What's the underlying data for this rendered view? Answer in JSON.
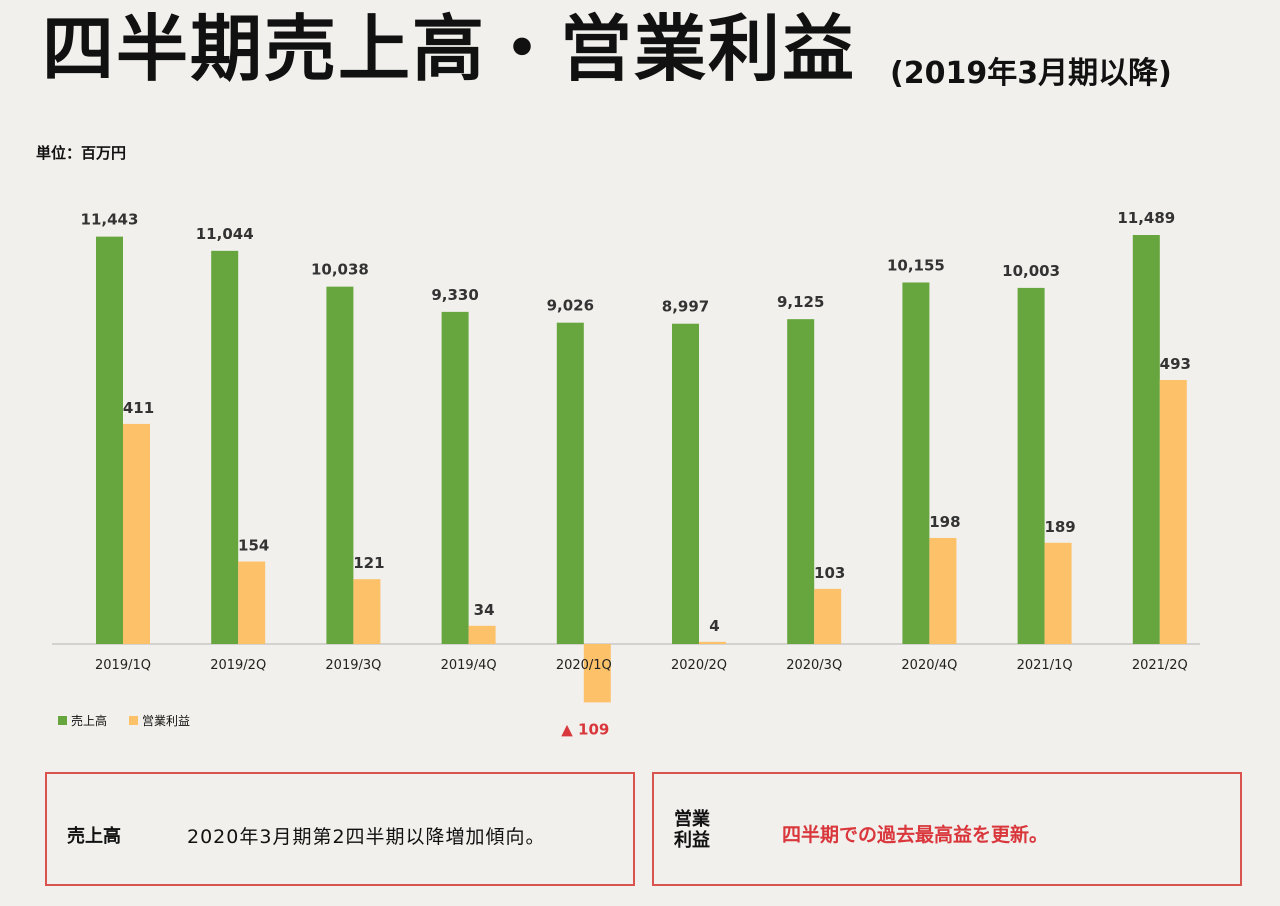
{
  "header": {
    "title": "四半期売上高・営業利益",
    "subtitle": "(2019年3月期以降)",
    "unit": "単位：百万円"
  },
  "colors": {
    "sales": "#67a63e",
    "profit": "#fdc16a",
    "negative": "#d9373c"
  },
  "chart_data": {
    "type": "bar",
    "categories": [
      "2019/1Q",
      "2019/2Q",
      "2019/3Q",
      "2019/4Q",
      "2020/1Q",
      "2020/2Q",
      "2020/3Q",
      "2020/4Q",
      "2021/1Q",
      "2021/2Q"
    ],
    "series": [
      {
        "name": "売上高",
        "values": [
          11443,
          11044,
          10038,
          9330,
          9026,
          8997,
          9125,
          10155,
          10003,
          11489
        ],
        "labels": [
          "11,443",
          "11,044",
          "10,038",
          "9,330",
          "9,026",
          "8,997",
          "9,125",
          "10,155",
          "10,003",
          "11,489"
        ]
      },
      {
        "name": "営業利益",
        "values": [
          411,
          154,
          121,
          34,
          -109,
          4,
          103,
          198,
          189,
          493
        ],
        "labels": [
          "411",
          "154",
          "121",
          "34",
          "▲ 109",
          "4",
          "103",
          "198",
          "189",
          "493"
        ]
      }
    ],
    "sales_axis": [
      0,
      11489
    ],
    "profit_axis": [
      0,
      493
    ],
    "legend": "bottom-left"
  },
  "notes": {
    "sales": {
      "label": "売上高",
      "text": "2020年3月期第2四半期以降増加傾向。"
    },
    "profit": {
      "label": "営業\n利益",
      "text": "四半期での過去最高益を更新。"
    }
  }
}
